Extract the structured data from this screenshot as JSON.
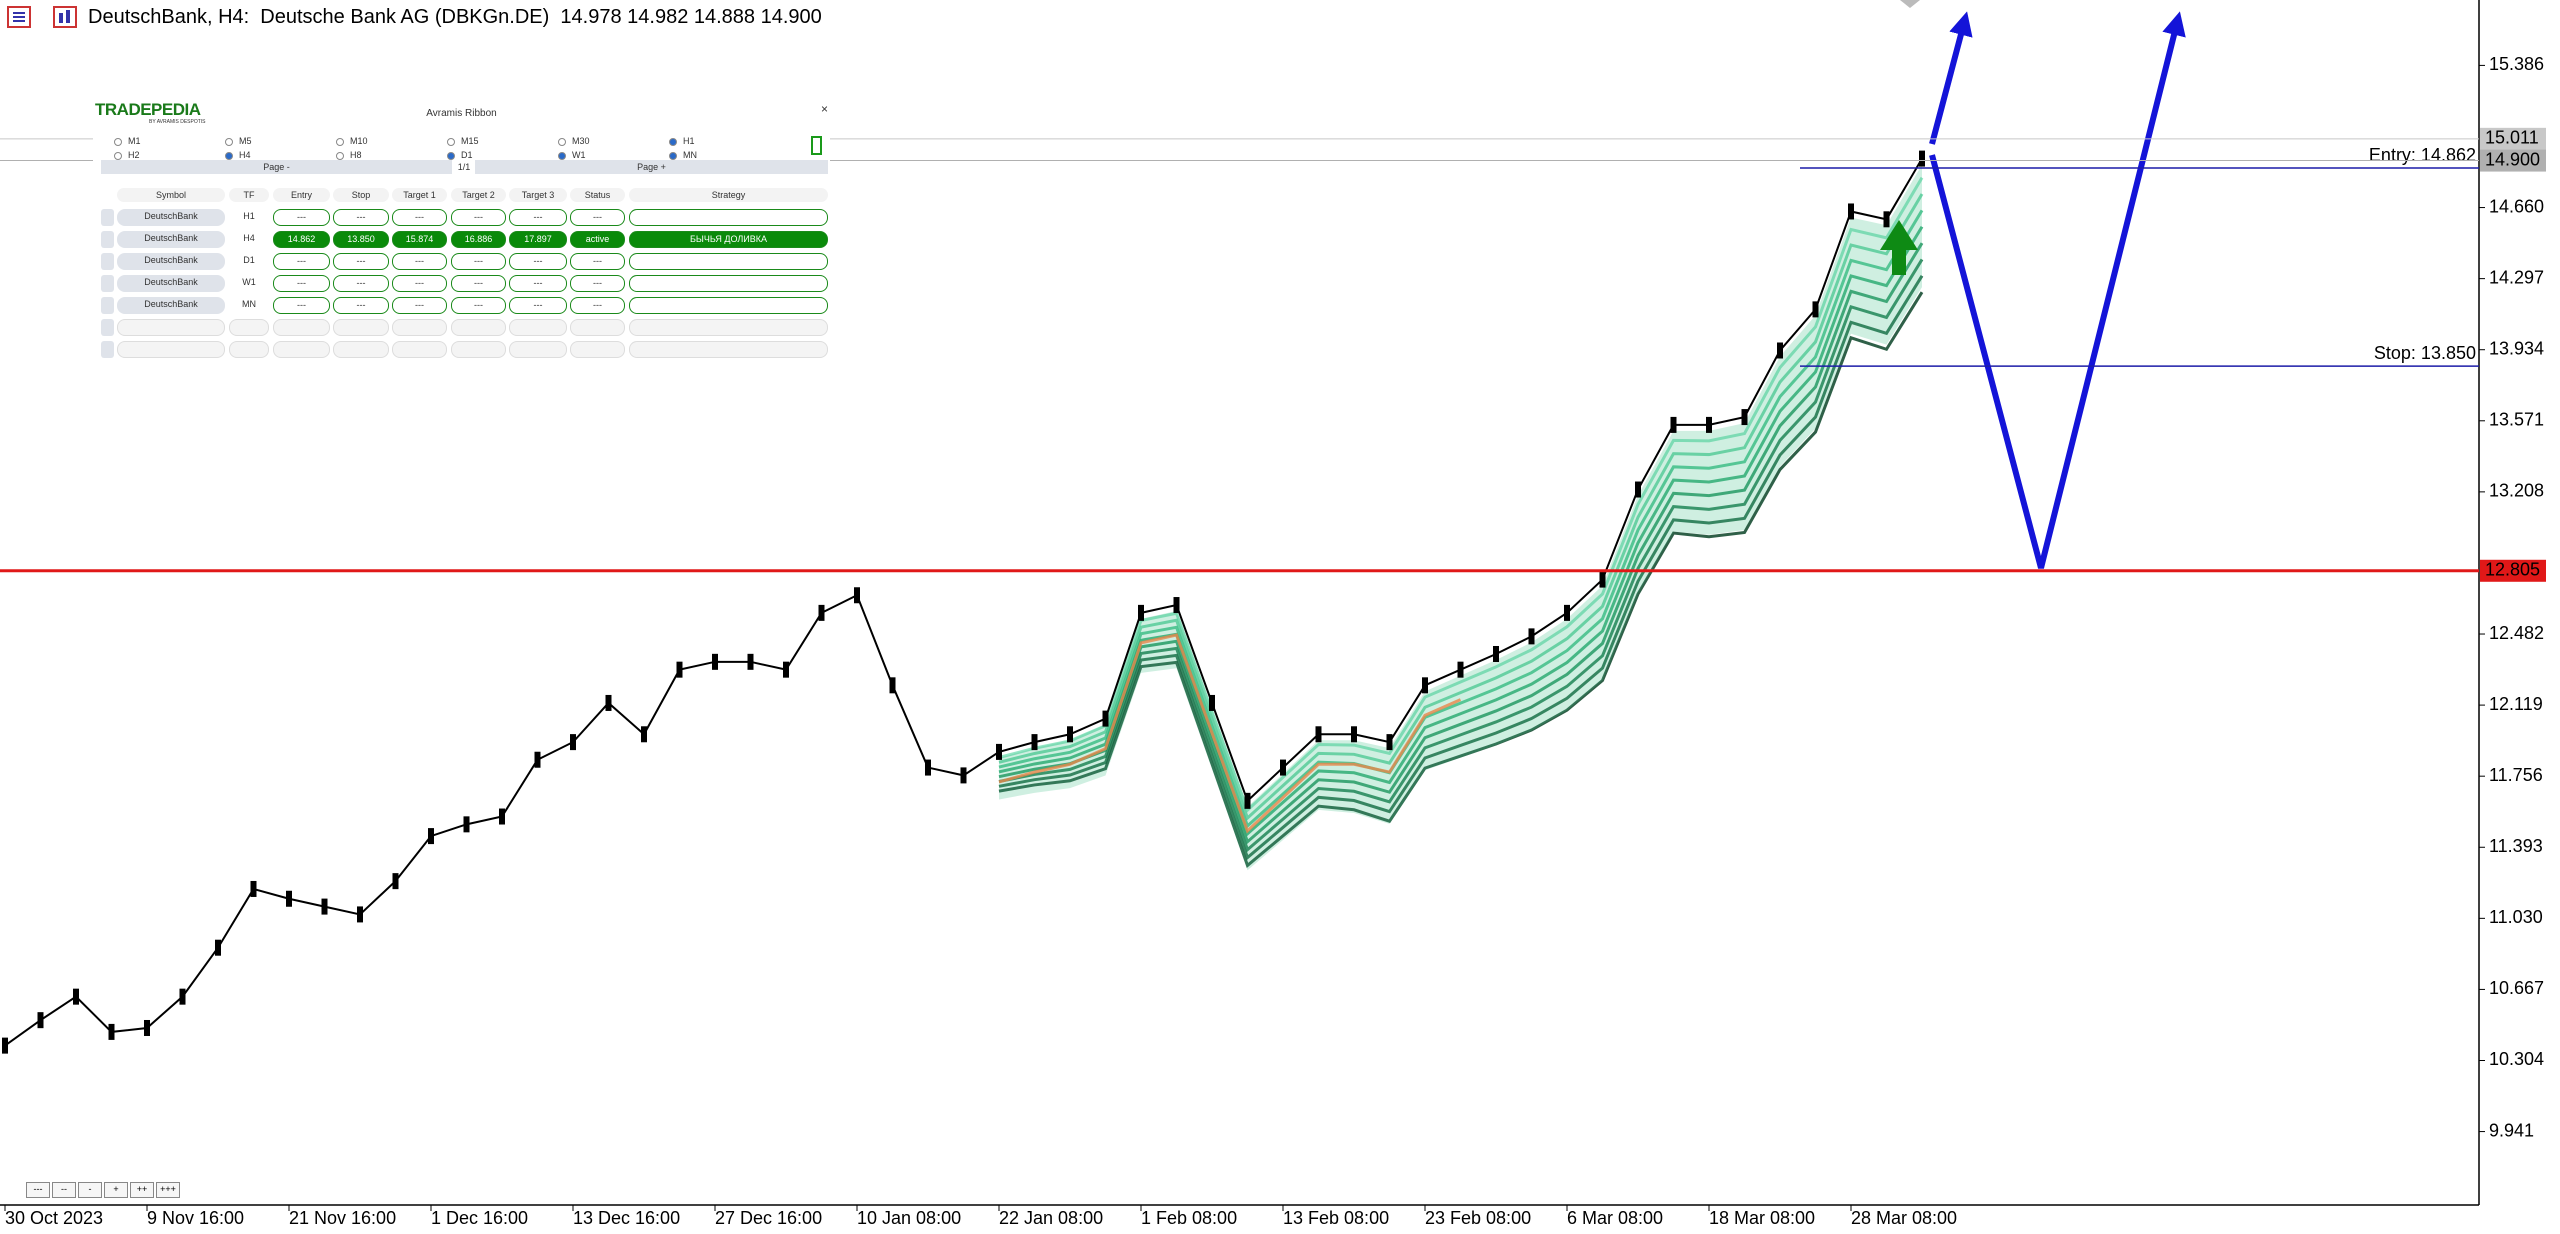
{
  "header": {
    "title": "DeutschBank, H4:  Deutsche Bank AG (DBKGn.DE)  14.978 14.982 14.888 14.900"
  },
  "chart_data": {
    "type": "line",
    "color": "#000000",
    "categories": [
      "30 Oct 2023",
      null,
      null,
      null,
      "9 Nov 16:00",
      null,
      null,
      null,
      "21 Nov 16:00",
      null,
      null,
      null,
      "1 Dec 16:00",
      null,
      null,
      null,
      "13 Dec 16:00",
      null,
      null,
      null,
      "27 Dec 16:00",
      null,
      null,
      null,
      "10 Jan 08:00",
      null,
      null,
      null,
      "22 Jan 08:00",
      null,
      null,
      null,
      "1 Feb 08:00",
      null,
      null,
      null,
      "13 Feb 08:00",
      null,
      null,
      null,
      "23 Feb 08:00",
      null,
      null,
      null,
      "6 Mar 08:00",
      null,
      null,
      null,
      "18 Mar 08:00",
      null,
      null,
      null,
      "28 Mar 08:00",
      null,
      null
    ],
    "values": [
      10.38,
      10.51,
      10.63,
      10.45,
      10.47,
      10.63,
      10.88,
      11.18,
      11.13,
      11.09,
      11.05,
      11.22,
      11.45,
      11.51,
      11.55,
      11.84,
      11.93,
      12.13,
      11.97,
      12.3,
      12.34,
      12.34,
      12.3,
      12.59,
      12.68,
      12.22,
      11.8,
      11.76,
      11.88,
      11.93,
      11.97,
      12.05,
      12.59,
      12.63,
      12.13,
      11.63,
      11.8,
      11.97,
      11.97,
      11.93,
      12.22,
      12.3,
      12.38,
      12.47,
      12.59,
      12.76,
      13.22,
      13.55,
      13.55,
      13.59,
      13.93,
      14.14,
      14.64,
      14.6,
      14.91
    ],
    "ylim": [
      9.566,
      15.72
    ],
    "yticks": [
      {
        "value": 9.941,
        "label": "9.941"
      },
      {
        "value": 10.304,
        "label": "10.304"
      },
      {
        "value": 10.667,
        "label": "10.667"
      },
      {
        "value": 11.03,
        "label": "11.030"
      },
      {
        "value": 11.393,
        "label": "11.393"
      },
      {
        "value": 11.756,
        "label": "11.756"
      },
      {
        "value": 12.119,
        "label": "12.119"
      },
      {
        "value": 12.482,
        "label": "12.482"
      },
      {
        "value": 13.208,
        "label": "13.208"
      },
      {
        "value": 13.571,
        "label": "13.571"
      },
      {
        "value": 13.934,
        "label": "13.934"
      },
      {
        "value": 14.297,
        "label": "14.297"
      },
      {
        "value": 14.66,
        "label": "14.660"
      },
      {
        "value": 15.386,
        "label": "15.386"
      }
    ],
    "levels": [
      {
        "label": "Entry: 14.862",
        "value": 14.862,
        "color": "#1c1ca8"
      },
      {
        "label": "Stop: 13.850",
        "value": 13.85,
        "color": "#1c1ca8"
      }
    ],
    "price_labels": [
      {
        "value": 15.011,
        "label": "15.011",
        "color": "#c8c8c8"
      },
      {
        "value": 14.9,
        "label": "14.900",
        "color": "#b0b0b0"
      },
      {
        "value": 12.805,
        "label": "12.805",
        "color": "#e01818"
      }
    ]
  },
  "panel": {
    "logo": "TRADEPEDIA",
    "logo_sub": "BY AVRAMIS DESPOTIS",
    "title": "Avramis Ribbon",
    "close": "×",
    "timeframes": [
      {
        "label": "M1",
        "checked": false
      },
      {
        "label": "M5",
        "checked": false
      },
      {
        "label": "M10",
        "checked": false
      },
      {
        "label": "M15",
        "checked": false
      },
      {
        "label": "M30",
        "checked": false
      },
      {
        "label": "H1",
        "checked": true
      },
      {
        "label": "H2",
        "checked": false
      },
      {
        "label": "H4",
        "checked": true
      },
      {
        "label": "H8",
        "checked": false
      },
      {
        "label": "D1",
        "checked": true
      },
      {
        "label": "W1",
        "checked": true
      },
      {
        "label": "MN",
        "checked": true
      }
    ],
    "page_prev": "Page -",
    "page_num": "1/1",
    "page_next": "Page +",
    "columns": {
      "symbol": "Symbol",
      "tf": "TF",
      "entry": "Entry",
      "stop": "Stop",
      "target1": "Target 1",
      "target2": "Target 2",
      "target3": "Target 3",
      "status": "Status",
      "strategy": "Strategy"
    },
    "rows": [
      {
        "symbol": "DeutschBank",
        "tf": "H1",
        "entry": "---",
        "stop": "---",
        "target1": "---",
        "target2": "---",
        "target3": "---",
        "status": "---"
      },
      {
        "symbol": "DeutschBank",
        "tf": "H4",
        "entry": "14.862",
        "stop": "13.850",
        "target1": "15.874",
        "target2": "16.886",
        "target3": "17.897",
        "status": "active",
        "strategy": "БЫЧЬЯ ДОЛИВКА"
      },
      {
        "symbol": "DeutschBank",
        "tf": "D1",
        "entry": "---",
        "stop": "---",
        "target1": "---",
        "target2": "---",
        "target3": "---",
        "status": "---"
      },
      {
        "symbol": "DeutschBank",
        "tf": "W1",
        "entry": "---",
        "stop": "---",
        "target1": "---",
        "target2": "---",
        "target3": "---",
        "status": "---"
      },
      {
        "symbol": "DeutschBank",
        "tf": "MN",
        "entry": "---",
        "stop": "---",
        "target1": "---",
        "target2": "---",
        "target3": "---",
        "status": "---"
      }
    ]
  },
  "zoom_buttons": [
    "---",
    "--",
    "-",
    "+",
    "++",
    "+++"
  ]
}
